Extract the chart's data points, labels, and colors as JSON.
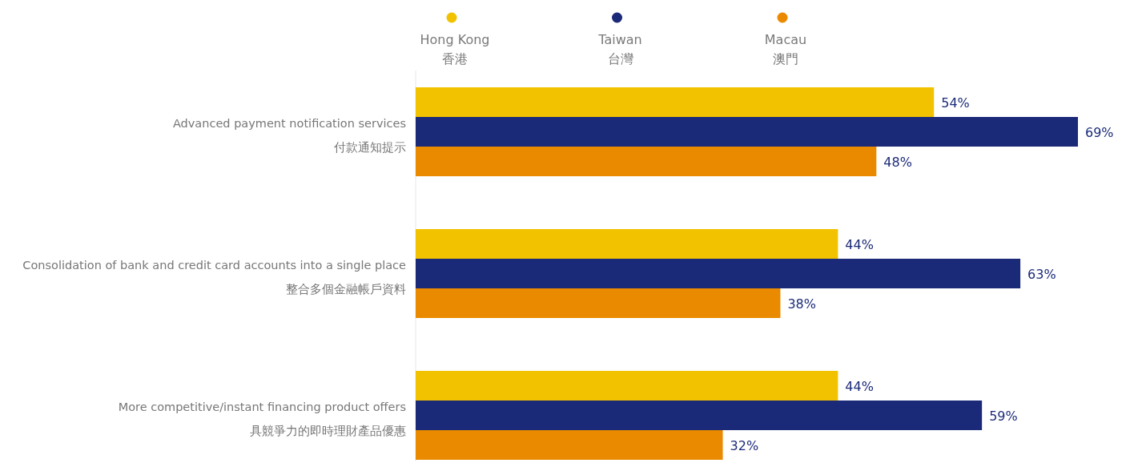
{
  "chart_data": {
    "type": "bar",
    "orientation": "horizontal",
    "legend": "top",
    "categories": [
      "Advanced payment notification services\n付款通知提示",
      "Consolidation of bank and credit card accounts into a single place\n整合多個金融帳戶資料",
      "More competitive/instant financing product offers\n具競爭力的即時理財產品優惠"
    ],
    "series": [
      {
        "name": "Hong Kong\n香港",
        "color": "#f2c200",
        "values": [
          54,
          44,
          44
        ],
        "value_labels": [
          "54%",
          "44%",
          "44%"
        ]
      },
      {
        "name": "Taiwan\n台灣",
        "color": "#1b2a78",
        "values": [
          69,
          63,
          59
        ],
        "value_labels": [
          "69%",
          "63%",
          "59%"
        ]
      },
      {
        "name": "Macau\n澳門",
        "color": "#e98a00",
        "values": [
          48,
          38,
          32
        ],
        "value_labels": [
          "48%",
          "38%",
          "32%"
        ]
      }
    ]
  }
}
